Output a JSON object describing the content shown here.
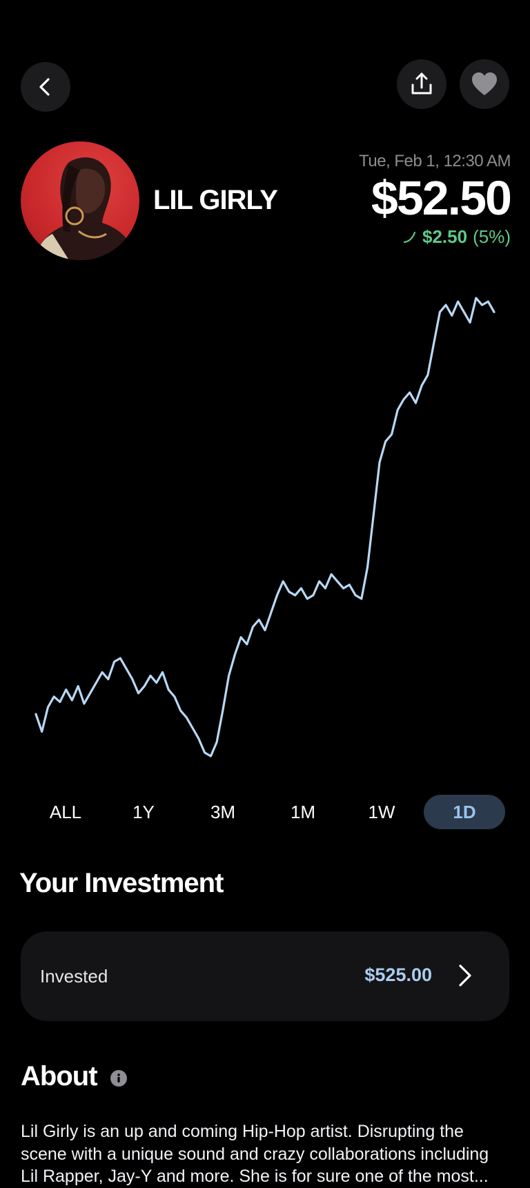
{
  "header": {
    "back_icon": "chevron-left-icon",
    "share_icon": "share-icon",
    "favorite_icon": "heart-icon"
  },
  "artist": {
    "name": "LIL GIRLY"
  },
  "price": {
    "date": "Tue, Feb 1, 12:30 AM",
    "value": "$52.50",
    "change_amount": "$2.50",
    "change_percent": "(5%)",
    "change_color": "#5fc98a"
  },
  "chart_data": {
    "type": "line",
    "color": "#b8d8f5",
    "values": [
      28,
      18,
      32,
      38,
      35,
      42,
      36,
      44,
      34,
      40,
      46,
      52,
      48,
      58,
      60,
      54,
      48,
      40,
      44,
      50,
      46,
      52,
      42,
      38,
      30,
      26,
      20,
      14,
      6,
      4,
      12,
      30,
      50,
      62,
      72,
      68,
      78,
      82,
      76,
      86,
      96,
      104,
      98,
      96,
      100,
      94,
      96,
      104,
      100,
      108,
      104,
      100,
      102,
      96,
      94,
      112,
      142,
      172,
      184,
      188,
      202,
      208,
      212,
      206,
      216,
      222,
      240,
      258,
      262,
      256,
      264,
      258,
      252,
      266,
      262,
      264,
      258
    ]
  },
  "range_tabs": [
    {
      "label": "ALL",
      "active": false
    },
    {
      "label": "1Y",
      "active": false
    },
    {
      "label": "3M",
      "active": false
    },
    {
      "label": "1M",
      "active": false
    },
    {
      "label": "1W",
      "active": false
    },
    {
      "label": "1D",
      "active": true
    }
  ],
  "investment": {
    "title": "Your Investment",
    "label": "Invested",
    "value": "$525.00"
  },
  "about": {
    "title": "About",
    "text": "Lil Girly is an up and coming Hip-Hop artist. Disrupting the scene with a unique sound and crazy collaborations including Lil Rapper, Jay-Y and more.  She is for sure one of the most..."
  }
}
